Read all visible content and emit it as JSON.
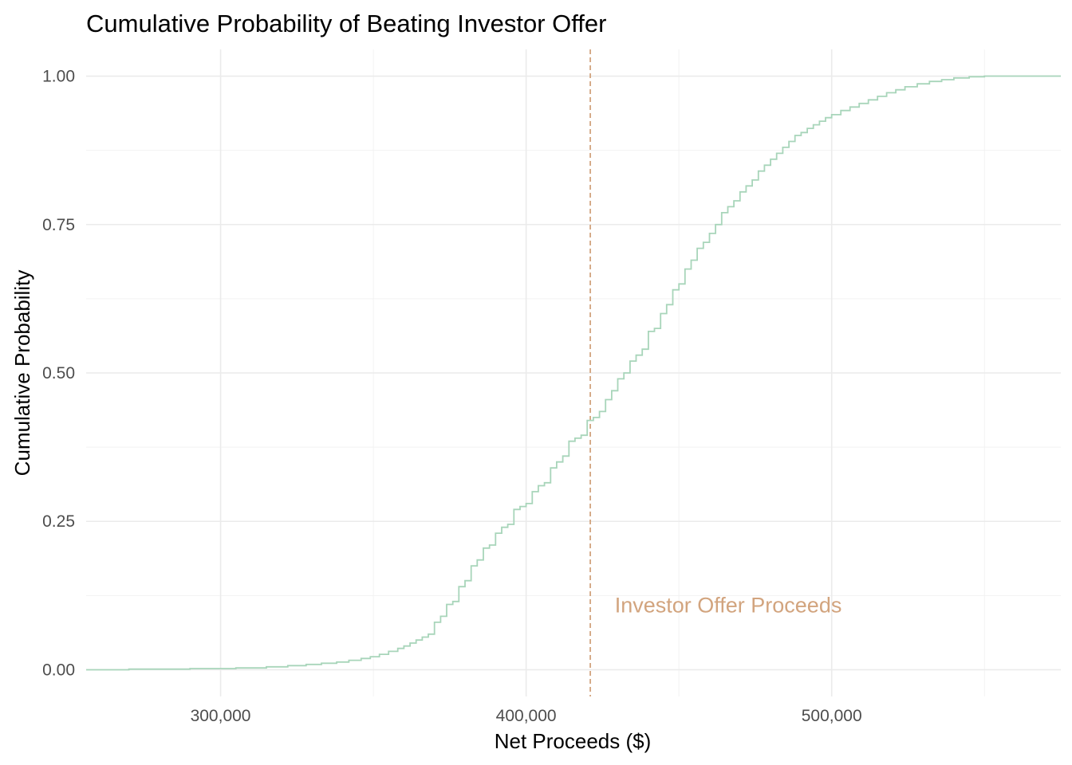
{
  "chart_data": {
    "type": "line",
    "subtype": "ecdf-step",
    "title": "Cumulative Probability of Beating Investor Offer",
    "xlabel": "Net Proceeds ($)",
    "ylabel": "Cumulative Probability",
    "xlim": [
      256000,
      575000
    ],
    "ylim": [
      -0.045,
      1.045
    ],
    "x_ticks": [
      300000,
      400000,
      500000
    ],
    "x_tick_labels": [
      "300,000",
      "400,000",
      "500,000"
    ],
    "x_minor_ticks": [
      350000,
      450000,
      550000
    ],
    "y_ticks": [
      0,
      0.25,
      0.5,
      0.75,
      1
    ],
    "y_tick_labels": [
      "0.00",
      "0.25",
      "0.50",
      "0.75",
      "1.00"
    ],
    "y_minor_ticks": [
      0.125,
      0.375,
      0.625,
      0.875
    ],
    "grid": true,
    "legend": "none",
    "series": [
      {
        "color": "#a8d5ba",
        "x": [
          256000,
          270000,
          290000,
          305000,
          315000,
          322000,
          328000,
          333000,
          338000,
          342000,
          346000,
          349000,
          352000,
          355000,
          358000,
          360000,
          362000,
          364000,
          366000,
          368000,
          370000,
          372000,
          374000,
          376000,
          378000,
          380000,
          382000,
          384000,
          386000,
          388000,
          390000,
          392000,
          394000,
          396000,
          398000,
          400000,
          402000,
          404000,
          406000,
          408000,
          410000,
          412000,
          414000,
          416000,
          418000,
          420000,
          422000,
          424000,
          426000,
          428000,
          430000,
          432000,
          434000,
          436000,
          438000,
          440000,
          442000,
          444000,
          446000,
          448000,
          450000,
          452000,
          454000,
          456000,
          458000,
          460000,
          462000,
          464000,
          466000,
          468000,
          470000,
          472000,
          474000,
          476000,
          478000,
          480000,
          482000,
          484000,
          486000,
          488000,
          490000,
          492000,
          494000,
          496000,
          498000,
          500000,
          503000,
          506000,
          509000,
          512000,
          515000,
          518000,
          521000,
          524000,
          528000,
          532000,
          536000,
          540000,
          545000,
          550000,
          555000,
          560000,
          575000
        ],
        "y": [
          0.0,
          0.001,
          0.002,
          0.003,
          0.005,
          0.007,
          0.009,
          0.011,
          0.013,
          0.016,
          0.019,
          0.022,
          0.026,
          0.031,
          0.036,
          0.04,
          0.045,
          0.05,
          0.055,
          0.06,
          0.08,
          0.09,
          0.11,
          0.115,
          0.14,
          0.15,
          0.175,
          0.185,
          0.205,
          0.21,
          0.23,
          0.24,
          0.245,
          0.27,
          0.275,
          0.28,
          0.3,
          0.31,
          0.315,
          0.34,
          0.35,
          0.36,
          0.385,
          0.39,
          0.395,
          0.42,
          0.425,
          0.435,
          0.455,
          0.47,
          0.49,
          0.5,
          0.52,
          0.53,
          0.54,
          0.57,
          0.575,
          0.6,
          0.615,
          0.64,
          0.65,
          0.675,
          0.69,
          0.71,
          0.72,
          0.735,
          0.75,
          0.77,
          0.78,
          0.79,
          0.805,
          0.815,
          0.825,
          0.84,
          0.85,
          0.86,
          0.87,
          0.88,
          0.89,
          0.9,
          0.905,
          0.912,
          0.918,
          0.924,
          0.93,
          0.935,
          0.942,
          0.948,
          0.954,
          0.96,
          0.966,
          0.972,
          0.977,
          0.982,
          0.987,
          0.991,
          0.994,
          0.997,
          0.999,
          1.0,
          1.0,
          1.0,
          1.0
        ]
      }
    ],
    "reference_line": {
      "x": 421000,
      "style": "dashed",
      "color": "#d2a47e"
    },
    "annotations": [
      {
        "text": "Investor Offer Proceeds",
        "x": 429000,
        "y": 0.095,
        "color": "#d2a47e"
      }
    ]
  }
}
